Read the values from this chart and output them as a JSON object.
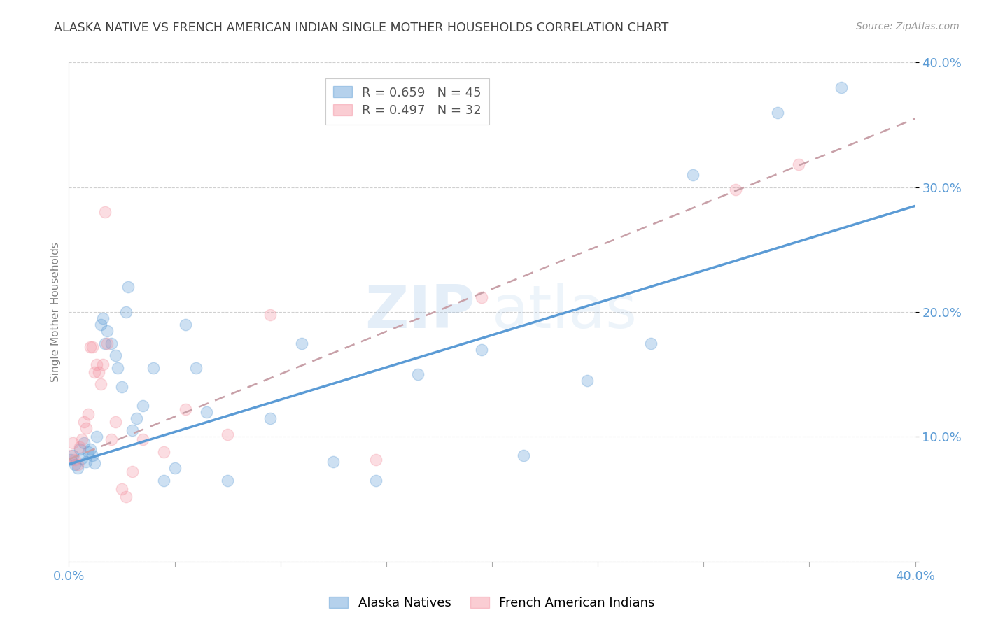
{
  "title": "ALASKA NATIVE VS FRENCH AMERICAN INDIAN SINGLE MOTHER HOUSEHOLDS CORRELATION CHART",
  "source": "Source: ZipAtlas.com",
  "ylabel": "Single Mother Households",
  "xlim": [
    0.0,
    0.4
  ],
  "ylim": [
    0.0,
    0.4
  ],
  "legend_blue_r": "R = 0.659",
  "legend_blue_n": "N = 45",
  "legend_pink_r": "R = 0.497",
  "legend_pink_n": "N = 32",
  "blue_color": "#5b9bd5",
  "pink_color": "#f4909f",
  "blue_scatter": [
    [
      0.001,
      0.082
    ],
    [
      0.002,
      0.085
    ],
    [
      0.003,
      0.078
    ],
    [
      0.004,
      0.075
    ],
    [
      0.005,
      0.09
    ],
    [
      0.006,
      0.083
    ],
    [
      0.007,
      0.095
    ],
    [
      0.008,
      0.08
    ],
    [
      0.009,
      0.088
    ],
    [
      0.01,
      0.09
    ],
    [
      0.011,
      0.085
    ],
    [
      0.012,
      0.079
    ],
    [
      0.013,
      0.1
    ],
    [
      0.015,
      0.19
    ],
    [
      0.016,
      0.195
    ],
    [
      0.017,
      0.175
    ],
    [
      0.018,
      0.185
    ],
    [
      0.02,
      0.175
    ],
    [
      0.022,
      0.165
    ],
    [
      0.023,
      0.155
    ],
    [
      0.025,
      0.14
    ],
    [
      0.027,
      0.2
    ],
    [
      0.028,
      0.22
    ],
    [
      0.03,
      0.105
    ],
    [
      0.032,
      0.115
    ],
    [
      0.035,
      0.125
    ],
    [
      0.04,
      0.155
    ],
    [
      0.045,
      0.065
    ],
    [
      0.05,
      0.075
    ],
    [
      0.055,
      0.19
    ],
    [
      0.06,
      0.155
    ],
    [
      0.065,
      0.12
    ],
    [
      0.075,
      0.065
    ],
    [
      0.095,
      0.115
    ],
    [
      0.11,
      0.175
    ],
    [
      0.125,
      0.08
    ],
    [
      0.145,
      0.065
    ],
    [
      0.165,
      0.15
    ],
    [
      0.195,
      0.17
    ],
    [
      0.215,
      0.085
    ],
    [
      0.245,
      0.145
    ],
    [
      0.275,
      0.175
    ],
    [
      0.295,
      0.31
    ],
    [
      0.335,
      0.36
    ],
    [
      0.365,
      0.38
    ]
  ],
  "pink_scatter": [
    [
      0.001,
      0.085
    ],
    [
      0.002,
      0.095
    ],
    [
      0.003,
      0.082
    ],
    [
      0.004,
      0.078
    ],
    [
      0.005,
      0.092
    ],
    [
      0.006,
      0.098
    ],
    [
      0.007,
      0.112
    ],
    [
      0.008,
      0.107
    ],
    [
      0.009,
      0.118
    ],
    [
      0.01,
      0.172
    ],
    [
      0.011,
      0.172
    ],
    [
      0.012,
      0.152
    ],
    [
      0.013,
      0.158
    ],
    [
      0.014,
      0.152
    ],
    [
      0.015,
      0.142
    ],
    [
      0.016,
      0.158
    ],
    [
      0.017,
      0.28
    ],
    [
      0.018,
      0.175
    ],
    [
      0.02,
      0.098
    ],
    [
      0.022,
      0.112
    ],
    [
      0.025,
      0.058
    ],
    [
      0.027,
      0.052
    ],
    [
      0.03,
      0.072
    ],
    [
      0.035,
      0.098
    ],
    [
      0.045,
      0.088
    ],
    [
      0.055,
      0.122
    ],
    [
      0.075,
      0.102
    ],
    [
      0.095,
      0.198
    ],
    [
      0.145,
      0.082
    ],
    [
      0.195,
      0.212
    ],
    [
      0.315,
      0.298
    ],
    [
      0.345,
      0.318
    ]
  ],
  "blue_trend_x": [
    0.0,
    0.4
  ],
  "blue_trend_y": [
    0.078,
    0.285
  ],
  "pink_trend_x": [
    0.0,
    0.4
  ],
  "pink_trend_y": [
    0.082,
    0.355
  ],
  "watermark_zip": "ZIP",
  "watermark_atlas": "atlas",
  "background_color": "#ffffff",
  "grid_color": "#d0d0d0",
  "title_color": "#404040",
  "axis_label_color": "#5b9bd5",
  "ylabel_color": "#808080"
}
